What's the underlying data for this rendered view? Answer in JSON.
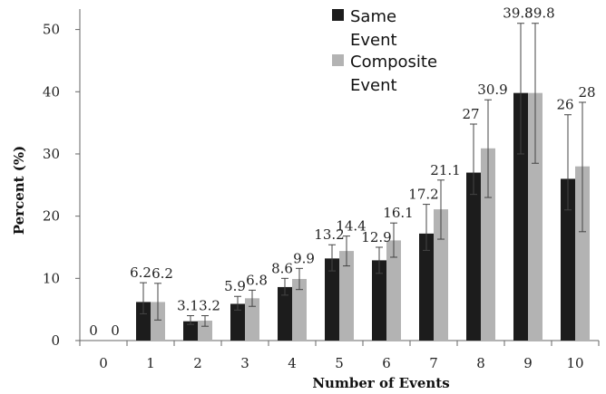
{
  "chart_data": {
    "type": "bar",
    "xlabel": "Number of Events",
    "ylabel": "Percent (%)",
    "ylim": [
      0,
      53
    ],
    "yticks": [
      0,
      10,
      20,
      30,
      40,
      50
    ],
    "categories": [
      "0",
      "1",
      "2",
      "3",
      "4",
      "5",
      "6",
      "7",
      "8",
      "9",
      "10"
    ],
    "legend_position": "top-center",
    "grid": false,
    "series": [
      {
        "name": "Same Event",
        "legend_lines": [
          "Same",
          "Event"
        ],
        "color": "#1c1c1c",
        "values": [
          0,
          6.2,
          3.1,
          5.9,
          8.6,
          13.2,
          12.9,
          17.2,
          27,
          39.8,
          26
        ],
        "labels": [
          "0",
          "6.2",
          "3.1",
          "5.9",
          "8.6",
          "13.2",
          "12.9",
          "17.2",
          "27",
          "39.8",
          "26"
        ],
        "error_upper": [
          0,
          9.3,
          4.0,
          7.1,
          10.0,
          15.4,
          15.0,
          21.9,
          34.8,
          51.0,
          36.3
        ],
        "error_lower": [
          0,
          4.3,
          2.6,
          4.9,
          7.3,
          11.2,
          10.8,
          14.5,
          23.5,
          30.0,
          21.0
        ]
      },
      {
        "name": "Composite Event",
        "legend_lines": [
          "Composite",
          "Event"
        ],
        "color": "#b3b3b3",
        "values": [
          0,
          6.2,
          3.2,
          6.8,
          9.9,
          14.4,
          16.1,
          21.1,
          30.9,
          39.8,
          28
        ],
        "labels": [
          "0",
          "6.2",
          "3.2",
          "6.8",
          "9.9",
          "14.4",
          "16.1",
          "21.1",
          "30.9",
          "39.8",
          "28"
        ],
        "error_upper": [
          0,
          9.2,
          4.0,
          8.1,
          11.6,
          16.8,
          18.9,
          25.8,
          38.7,
          51.0,
          38.3
        ],
        "error_lower": [
          0,
          3.3,
          2.3,
          5.5,
          8.2,
          12.0,
          13.4,
          16.3,
          23.0,
          28.5,
          17.5
        ]
      }
    ]
  }
}
